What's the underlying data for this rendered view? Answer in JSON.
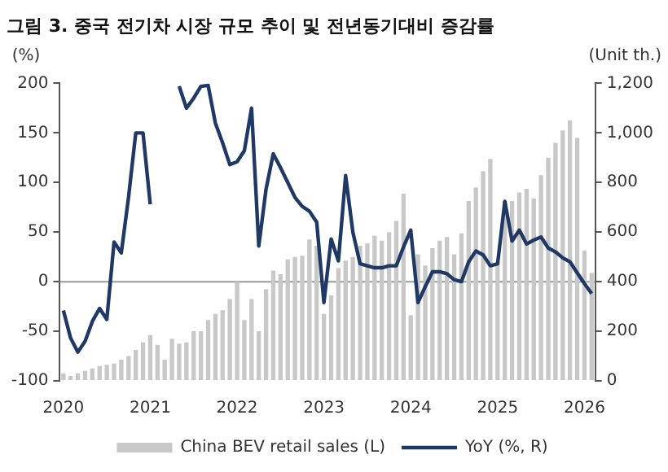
{
  "chart_data": {
    "type": "bar",
    "title": "그림 3. 중국 전기차 시장 규모 추이 및 전년동기대비 증감률",
    "ylabel": "(%)",
    "y2label": "(Unit th.)",
    "categories": [
      "2020",
      null,
      null,
      null,
      null,
      null,
      null,
      null,
      null,
      null,
      null,
      null,
      "2021",
      null,
      null,
      null,
      null,
      null,
      null,
      null,
      null,
      null,
      null,
      null,
      "2022",
      null,
      null,
      null,
      null,
      null,
      null,
      null,
      null,
      null,
      null,
      null,
      "2023",
      null,
      null,
      null,
      null,
      null,
      null,
      null,
      null,
      null,
      null,
      null,
      "2024",
      null,
      null,
      null,
      null,
      null,
      null,
      null,
      null,
      null,
      null,
      null,
      "2025",
      null,
      null,
      null,
      null,
      null,
      null,
      null,
      null,
      null,
      null,
      null,
      "2026",
      null
    ],
    "series": [
      {
        "name": "China BEV retail sales (L)",
        "axis": "y2",
        "color": "#c8c8c8",
        "values": [
          30,
          20,
          30,
          40,
          50,
          60,
          65,
          70,
          85,
          100,
          125,
          155,
          185,
          145,
          85,
          170,
          150,
          155,
          200,
          200,
          245,
          270,
          285,
          330,
          400,
          245,
          330,
          200,
          370,
          445,
          430,
          490,
          500,
          505,
          570,
          545,
          270,
          345,
          455,
          485,
          500,
          545,
          555,
          585,
          565,
          600,
          645,
          755,
          265,
          510,
          465,
          535,
          565,
          580,
          510,
          595,
          725,
          780,
          845,
          895,
          480,
          725,
          725,
          760,
          775,
          735,
          830,
          900,
          960,
          1010,
          1050,
          980,
          525,
          435
        ]
      },
      {
        "name": "YoY (%, R)",
        "type": "line",
        "color": "#1f3864",
        "values": [
          -29,
          -57,
          -71,
          -60,
          -40,
          -27,
          -38,
          40,
          29,
          85,
          150,
          150,
          78,
          null,
          null,
          null,
          197,
          175,
          185,
          197,
          198,
          160,
          140,
          118,
          121,
          132,
          175,
          36,
          93,
          129,
          115,
          100,
          85,
          76,
          71,
          60,
          -21,
          43,
          21,
          107,
          50,
          18,
          16,
          14,
          14,
          16,
          16,
          35,
          52,
          -21,
          -5,
          10,
          10,
          8,
          2,
          0,
          20,
          31,
          27,
          16,
          18,
          81,
          41,
          52,
          38,
          42,
          45,
          34,
          30,
          24,
          20,
          9,
          -2,
          -12
        ]
      }
    ],
    "ylim": [
      -100,
      200
    ],
    "yticks": [
      -100,
      -50,
      0,
      50,
      100,
      150,
      200
    ],
    "y2lim": [
      0,
      1200
    ],
    "y2ticks": [
      0,
      200,
      400,
      600,
      800,
      {
        "value": 1000,
        "label": "1,000"
      },
      {
        "value": 1200,
        "label": "1,200"
      }
    ],
    "ref_lines": [
      {
        "axis": "y",
        "value": 0,
        "color": "#999999"
      }
    ],
    "grid": false,
    "legend": "bottom",
    "marker": "none",
    "line_style": "solid"
  }
}
